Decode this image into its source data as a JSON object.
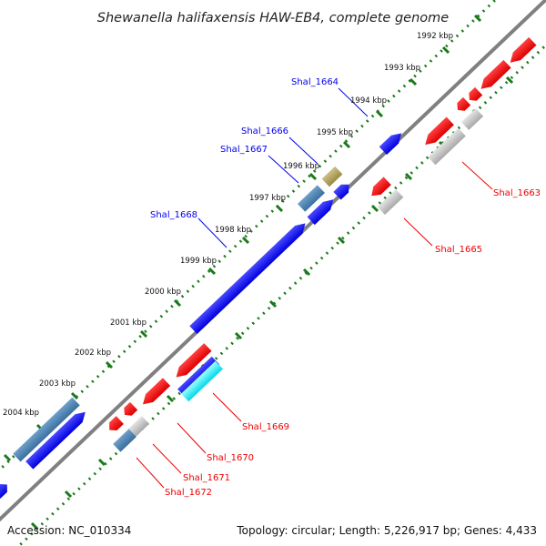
{
  "title": "Shewanella halifaxensis HAW-EB4, complete genome",
  "footer": {
    "accession": "Accession: NC_010334",
    "summary": "Topology: circular; Length: 5,226,917 bp; Genes: 4,433"
  },
  "kbp_labels": [
    "1992 kbp",
    "1993 kbp",
    "1994 kbp",
    "1995 kbp",
    "1996 kbp",
    "1997 kbp",
    "1998 kbp",
    "1999 kbp",
    "2000 kbp",
    "2001 kbp",
    "2002 kbp",
    "2003 kbp",
    "2004 kbp"
  ],
  "gene_labels": {
    "shal_1664": "Shal_1664",
    "shal_1666": "Shal_1666",
    "shal_1667": "Shal_1667",
    "shal_1668": "Shal_1668",
    "shal_1663": "Shal_1663",
    "shal_1665": "Shal_1665",
    "shal_1669": "Shal_1669",
    "shal_1670": "Shal_1670",
    "shal_1671": "Shal_1671",
    "shal_1672": "Shal_1672"
  },
  "colors": {
    "backbone": "#808080",
    "tick": "#1a7a1a",
    "forward_gene": "#0000ee",
    "steel_gene": "#4682b4",
    "reverse_gene": "#ee0000",
    "grey_gene": "#c8c8c8",
    "olive_gene": "#b5a55a",
    "cyan_gene": "#00ffff"
  }
}
